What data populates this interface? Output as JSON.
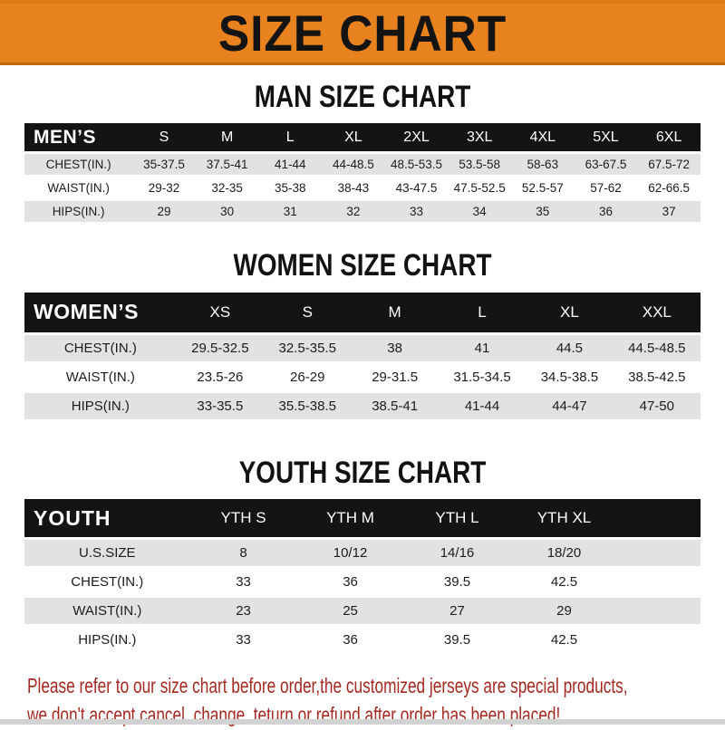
{
  "banner": {
    "title": "SIZE CHART"
  },
  "headings": {
    "men": "MAN SIZE CHART",
    "women": "WOMEN SIZE CHART",
    "youth": "YOUTH SIZE CHART"
  },
  "tables": {
    "men": {
      "label": "MEN’S",
      "columns": [
        "S",
        "M",
        "L",
        "XL",
        "2XL",
        "3XL",
        "4XL",
        "5XL",
        "6XL"
      ],
      "rows": [
        {
          "label": "CHEST(IN.)",
          "values": [
            "35-37.5",
            "37.5-41",
            "41-44",
            "44-48.5",
            "48.5-53.5",
            "53.5-58",
            "58-63",
            "63-67.5",
            "67.5-72"
          ]
        },
        {
          "label": "WAIST(IN.)",
          "values": [
            "29-32",
            "32-35",
            "35-38",
            "38-43",
            "43-47.5",
            "47.5-52.5",
            "52.5-57",
            "57-62",
            "62-66.5"
          ]
        },
        {
          "label": "HIPS(IN.)",
          "values": [
            "29",
            "30",
            "31",
            "32",
            "33",
            "34",
            "35",
            "36",
            "37"
          ]
        }
      ]
    },
    "women": {
      "label": "WOMEN’S",
      "columns": [
        "XS",
        "S",
        "M",
        "L",
        "XL",
        "XXL"
      ],
      "rows": [
        {
          "label": "CHEST(IN.)",
          "values": [
            "29.5-32.5",
            "32.5-35.5",
            "38",
            "41",
            "44.5",
            "44.5-48.5"
          ]
        },
        {
          "label": "WAIST(IN.)",
          "values": [
            "23.5-26",
            "26-29",
            "29-31.5",
            "31.5-34.5",
            "34.5-38.5",
            "38.5-42.5"
          ]
        },
        {
          "label": "HIPS(IN.)",
          "values": [
            "33-35.5",
            "35.5-38.5",
            "38.5-41",
            "41-44",
            "44-47",
            "47-50"
          ]
        }
      ]
    },
    "youth": {
      "label": "YOUTH",
      "columns": [
        "YTH S",
        "YTH M",
        "YTH L",
        "YTH XL"
      ],
      "rows": [
        {
          "label": "U.S.SIZE",
          "values": [
            "8",
            "10/12",
            "14/16",
            "18/20"
          ]
        },
        {
          "label": "CHEST(IN.)",
          "values": [
            "33",
            "36",
            "39.5",
            "42.5"
          ]
        },
        {
          "label": "WAIST(IN.)",
          "values": [
            "23",
            "25",
            "27",
            "29"
          ]
        },
        {
          "label": "HIPS(IN.)",
          "values": [
            "33",
            "36",
            "39.5",
            "42.5"
          ]
        }
      ]
    }
  },
  "notice": {
    "line1": "Please refer to our size chart before order,the customized jerseys are special products,",
    "line2": "we don't accept cancel, change, teturn or refund after order has been placed!"
  },
  "colors": {
    "accent-orange": "#E8821E",
    "band-black": "#141414",
    "stripe-gray": "#E2E2E2",
    "notice-red": "#A52A21"
  }
}
